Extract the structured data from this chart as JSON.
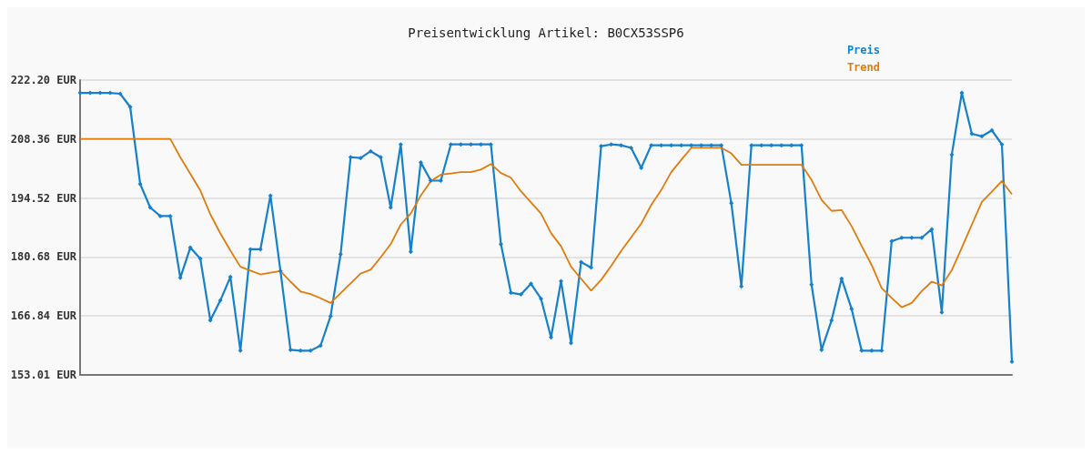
{
  "chart_data": {
    "type": "line",
    "title": "Preisentwicklung Artikel: B0CX53SSP6",
    "categories": [
      null,
      null,
      null,
      null,
      null,
      null,
      null,
      null,
      null,
      null,
      null,
      null,
      null,
      null,
      null,
      null,
      null,
      null,
      null,
      null,
      null,
      null,
      null,
      null,
      null,
      null,
      null,
      null,
      null,
      null,
      null,
      null,
      null,
      null,
      null,
      null,
      null,
      null,
      null,
      null,
      null,
      null,
      null,
      null,
      null,
      null,
      null,
      null,
      null,
      null,
      null,
      null,
      null,
      null,
      null,
      null,
      null,
      null,
      null,
      null,
      null,
      null,
      null,
      null,
      null,
      null,
      null,
      null,
      null,
      null,
      null,
      null,
      null,
      null,
      null,
      null,
      null,
      null,
      null,
      null,
      null,
      null,
      null,
      null,
      null,
      null,
      null,
      null,
      null,
      null,
      null,
      null,
      null,
      null
    ],
    "series": [
      {
        "name": "Preis",
        "color": "#1580cc",
        "marker": "diamond",
        "values": [
          219.2,
          219.2,
          219.2,
          219.2,
          219.0,
          215.9,
          197.8,
          192.3,
          190.3,
          190.3,
          175.8,
          182.9,
          180.3,
          165.8,
          170.5,
          176.0,
          158.7,
          182.5,
          182.5,
          195.1,
          177.4,
          158.9,
          158.7,
          158.7,
          159.9,
          166.8,
          181.3,
          204.1,
          203.9,
          205.5,
          204.1,
          192.3,
          207.1,
          181.9,
          202.9,
          198.6,
          198.6,
          207.1,
          207.1,
          207.1,
          207.1,
          207.1,
          183.7,
          172.3,
          171.9,
          174.4,
          170.9,
          161.8,
          175.0,
          160.5,
          179.5,
          178.2,
          206.7,
          207.1,
          206.9,
          206.3,
          201.6,
          206.9,
          206.9,
          206.9,
          206.9,
          206.9,
          206.9,
          206.9,
          206.9,
          193.3,
          173.8,
          206.9,
          206.9,
          206.9,
          206.9,
          206.9,
          206.9,
          174.2,
          158.9,
          165.8,
          175.6,
          168.5,
          158.7,
          158.7,
          158.7,
          184.4,
          185.2,
          185.2,
          185.2,
          187.2,
          167.7,
          204.7,
          219.2,
          209.6,
          209.0,
          210.4,
          207.1,
          156.1
        ]
      },
      {
        "name": "Trend",
        "color": "#e07b0c",
        "marker": "none",
        "values": [
          208.4,
          208.4,
          208.4,
          208.4,
          208.4,
          208.4,
          208.4,
          208.4,
          208.4,
          208.4,
          204.1,
          200.2,
          196.3,
          190.7,
          186.2,
          182.2,
          178.4,
          177.5,
          176.6,
          177.0,
          177.4,
          174.9,
          172.6,
          172.0,
          171.0,
          169.9,
          172.2,
          174.5,
          176.8,
          177.7,
          180.6,
          183.7,
          188.3,
          190.9,
          195.1,
          198.5,
          200.0,
          200.3,
          200.6,
          200.6,
          201.2,
          202.5,
          200.4,
          199.3,
          196.1,
          193.5,
          190.9,
          186.3,
          183.2,
          178.4,
          175.6,
          172.8,
          175.3,
          178.6,
          182.1,
          185.3,
          188.5,
          192.9,
          196.4,
          200.6,
          203.5,
          206.3,
          206.3,
          206.3,
          206.3,
          205.0,
          202.3,
          202.3,
          202.3,
          202.3,
          202.3,
          202.3,
          202.3,
          198.8,
          194.1,
          191.5,
          191.7,
          187.9,
          183.3,
          178.8,
          173.4,
          171.1,
          168.9,
          169.9,
          172.7,
          174.9,
          174.0,
          177.6,
          182.9,
          188.3,
          193.6,
          196.0,
          198.5,
          195.4
        ]
      }
    ],
    "ylim": [
      153.01,
      222.2
    ],
    "yticks": [
      {
        "value": 153.01,
        "label": "153.01 EUR"
      },
      {
        "value": 166.84,
        "label": "166.84 EUR"
      },
      {
        "value": 180.68,
        "label": "180.68 EUR"
      },
      {
        "value": 194.52,
        "label": "194.52 EUR"
      },
      {
        "value": 208.36,
        "label": "208.36 EUR"
      },
      {
        "value": 222.2,
        "label": "222.20 EUR"
      }
    ],
    "grid": "y",
    "legend": "top right",
    "tick_labels": "y",
    "line_style": "solid"
  }
}
